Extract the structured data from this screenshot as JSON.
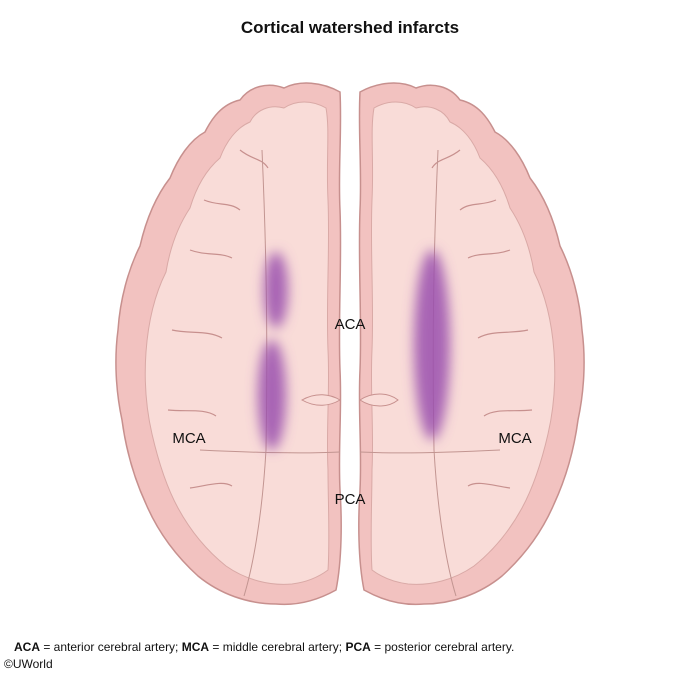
{
  "title": "Cortical watershed infarcts",
  "regions": {
    "aca": "ACA",
    "mca_left": "MCA",
    "mca_right": "MCA",
    "pca": "PCA"
  },
  "legend": [
    {
      "abbr": "ACA",
      "definition": " = anterior cerebral artery; "
    },
    {
      "abbr": "MCA",
      "definition": " = middle cerebral artery; "
    },
    {
      "abbr": "PCA",
      "definition": " = posterior cerebral artery."
    }
  ],
  "copyright": "©UWorld",
  "colors": {
    "cortex": "#f2c2c0",
    "white_matter": "#f9dcd8",
    "outline": "#c7908e",
    "infarct": "#9a4fae"
  }
}
